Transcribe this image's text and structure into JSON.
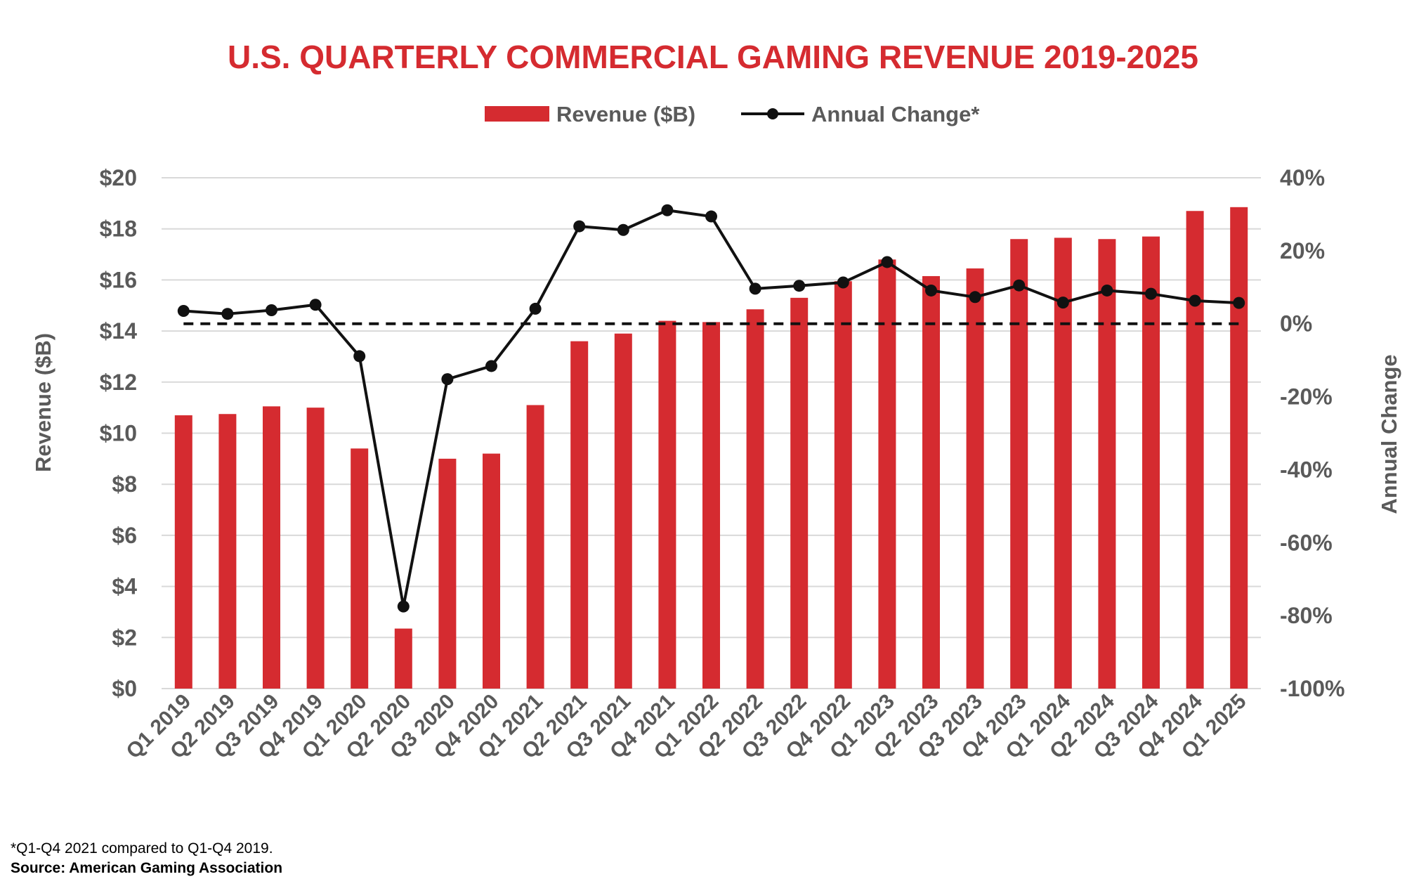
{
  "colors": {
    "bar": "#d52b30",
    "line": "#111111",
    "title": "#d52b30",
    "grid": "#d9d9d9",
    "text": "#5a5a5a",
    "zero_line": "#111111"
  },
  "chart_data": {
    "type": "bar",
    "title": "U.S. QUARTERLY COMMERCIAL GAMING REVENUE 2019-2025",
    "categories": [
      "Q1 2019",
      "Q2 2019",
      "Q3 2019",
      "Q4 2019",
      "Q1 2020",
      "Q2 2020",
      "Q3 2020",
      "Q4 2020",
      "Q1 2021",
      "Q2 2021",
      "Q3 2021",
      "Q4 2021",
      "Q1 2022",
      "Q2 2022",
      "Q3 2022",
      "Q4 2022",
      "Q1 2023",
      "Q2 2023",
      "Q3 2023",
      "Q4 2023",
      "Q1 2024",
      "Q2 2024",
      "Q3 2024",
      "Q4 2024",
      "Q1 2025"
    ],
    "series": [
      {
        "name": "Revenue ($B)",
        "type": "bar",
        "axis": "left",
        "values": [
          10.7,
          10.75,
          11.05,
          11.0,
          9.4,
          2.35,
          9.0,
          9.2,
          11.1,
          13.6,
          13.9,
          14.4,
          14.35,
          14.85,
          15.3,
          15.95,
          16.8,
          16.15,
          16.45,
          17.6,
          17.65,
          17.6,
          17.7,
          18.7,
          18.85
        ]
      },
      {
        "name": "Annual Change*",
        "type": "line",
        "axis": "right",
        "values": [
          3.5,
          2.7,
          3.7,
          5.2,
          -8.9,
          -77.5,
          -15.2,
          -11.6,
          4.1,
          26.7,
          25.7,
          31.1,
          29.4,
          9.6,
          10.4,
          11.3,
          16.9,
          9.1,
          7.3,
          10.5,
          5.8,
          9.1,
          8.2,
          6.3,
          5.7
        ]
      }
    ],
    "ylabel": "Revenue ($B)",
    "ylim": [
      0,
      20
    ],
    "yticks": [
      "$0",
      "$2",
      "$4",
      "$6",
      "$8",
      "$10",
      "$12",
      "$14",
      "$16",
      "$18",
      "$20"
    ],
    "y2label": "Annual Change",
    "y2lim": [
      -100,
      40
    ],
    "y2ticks": [
      "-100%",
      "-80%",
      "-60%",
      "-40%",
      "-20%",
      "0%",
      "20%",
      "40%"
    ],
    "reference_line": {
      "axis": "right",
      "value": 0,
      "style": "dashed"
    },
    "grid": true,
    "legend_position": "top-center"
  },
  "footnotes": {
    "note": "*Q1-Q4 2021 compared to Q1-Q4 2019.",
    "source": "Source: American Gaming Association"
  }
}
